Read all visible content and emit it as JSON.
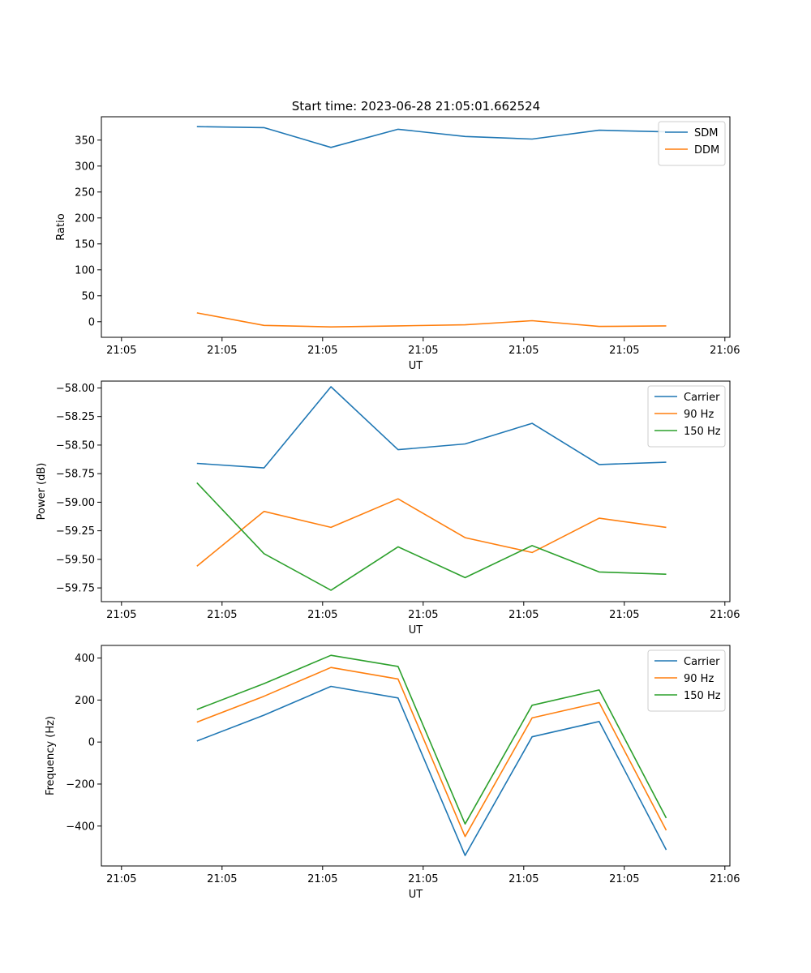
{
  "figure": {
    "title": "Start time: 2023-06-28 21:05:01.662524"
  },
  "chart_data": [
    {
      "type": "line",
      "xlabel": "UT",
      "ylabel": "Ratio",
      "x_tick_labels": [
        "21:05",
        "21:05",
        "21:05",
        "21:05",
        "21:05",
        "21:05",
        "21:06"
      ],
      "x_tick_pos": [
        -0.75,
        0.25,
        1.25,
        2.25,
        3.25,
        4.25,
        5.25
      ],
      "xlim": [
        -0.95,
        5.3
      ],
      "x": [
        0,
        0.667,
        1.333,
        2,
        2.667,
        3.333,
        4,
        4.667
      ],
      "ylim": [
        -30,
        395
      ],
      "y_ticks": [
        0,
        50,
        100,
        150,
        200,
        250,
        300,
        350
      ],
      "legend": "top-right",
      "series": [
        {
          "name": "SDM",
          "color": "#1f77b4",
          "values": [
            376,
            374,
            336,
            371,
            357,
            352,
            369,
            366
          ]
        },
        {
          "name": "DDM",
          "color": "#ff7f0e",
          "values": [
            17,
            -7,
            -10,
            -8,
            -6,
            2,
            -9,
            -8
          ]
        }
      ]
    },
    {
      "type": "line",
      "xlabel": "UT",
      "ylabel": "Power (dB)",
      "x_tick_labels": [
        "21:05",
        "21:05",
        "21:05",
        "21:05",
        "21:05",
        "21:05",
        "21:06"
      ],
      "x_tick_pos": [
        -0.75,
        0.25,
        1.25,
        2.25,
        3.25,
        4.25,
        5.25
      ],
      "xlim": [
        -0.95,
        5.3
      ],
      "x": [
        0,
        0.667,
        1.333,
        2,
        2.667,
        3.333,
        4,
        4.667
      ],
      "ylim": [
        -59.87,
        -57.94
      ],
      "y_ticks": [
        -59.75,
        -59.5,
        -59.25,
        -59.0,
        -58.75,
        -58.5,
        -58.25,
        -58.0
      ],
      "y_tick_labels": [
        "−59.75",
        "−59.50",
        "−59.25",
        "−59.00",
        "−58.75",
        "−58.50",
        "−58.25",
        "−58.00"
      ],
      "legend": "top-right",
      "series": [
        {
          "name": "Carrier",
          "color": "#1f77b4",
          "values": [
            -58.66,
            -58.7,
            -57.99,
            -58.54,
            -58.49,
            -58.31,
            -58.67,
            -58.65
          ]
        },
        {
          "name": "90 Hz",
          "color": "#ff7f0e",
          "values": [
            -59.56,
            -59.08,
            -59.22,
            -58.97,
            -59.31,
            -59.44,
            -59.14,
            -59.22
          ]
        },
        {
          "name": "150 Hz",
          "color": "#2ca02c",
          "values": [
            -58.83,
            -59.45,
            -59.77,
            -59.39,
            -59.66,
            -59.38,
            -59.61,
            -59.63
          ]
        }
      ]
    },
    {
      "type": "line",
      "xlabel": "UT",
      "ylabel": "Frequency (Hz)",
      "x_tick_labels": [
        "21:05",
        "21:05",
        "21:05",
        "21:05",
        "21:05",
        "21:05",
        "21:06"
      ],
      "x_tick_pos": [
        -0.75,
        0.25,
        1.25,
        2.25,
        3.25,
        4.25,
        5.25
      ],
      "xlim": [
        -0.95,
        5.3
      ],
      "x": [
        0,
        0.667,
        1.333,
        2,
        2.667,
        3.333,
        4,
        4.667
      ],
      "ylim": [
        -590,
        460
      ],
      "y_ticks": [
        -400,
        -200,
        0,
        200,
        400
      ],
      "y_tick_labels": [
        "−400",
        "−200",
        "0",
        "200",
        "400"
      ],
      "legend": "top-right",
      "series": [
        {
          "name": "Carrier",
          "color": "#1f77b4",
          "values": [
            5,
            128,
            265,
            210,
            -540,
            25,
            98,
            -513
          ]
        },
        {
          "name": "90 Hz",
          "color": "#ff7f0e",
          "values": [
            95,
            218,
            355,
            300,
            -450,
            115,
            188,
            -420
          ]
        },
        {
          "name": "150 Hz",
          "color": "#2ca02c",
          "values": [
            155,
            278,
            413,
            360,
            -390,
            175,
            248,
            -362
          ]
        }
      ]
    }
  ]
}
